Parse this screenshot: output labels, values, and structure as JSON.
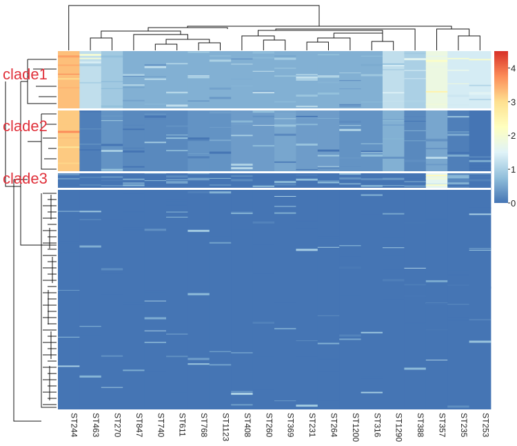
{
  "chart_data": {
    "type": "heatmap",
    "columns": [
      "ST244",
      "ST463",
      "ST270",
      "ST847",
      "ST740",
      "ST611",
      "ST768",
      "ST1123",
      "ST408",
      "ST260",
      "ST369",
      "ST231",
      "ST264",
      "ST1200",
      "ST316",
      "ST1290",
      "ST388",
      "ST357",
      "ST235",
      "ST253"
    ],
    "clade_labels": [
      "clade1",
      "clade2",
      "clade3"
    ],
    "colorbar": {
      "min": 0,
      "max": 4.5,
      "ticks": [
        0,
        1,
        2,
        3,
        4
      ],
      "colors": [
        "#4575b4",
        "#91bfdb",
        "#e0f3f8",
        "#ffffbf",
        "#fee090",
        "#fc8d59",
        "#d73027"
      ]
    },
    "blocks": [
      {
        "clade": "clade1",
        "values": [
          3.3,
          1.2,
          0.9,
          0.6,
          0.6,
          0.6,
          0.6,
          0.6,
          0.6,
          0.6,
          0.6,
          0.6,
          0.6,
          0.6,
          0.6,
          1.2,
          1.0,
          1.8,
          1.4,
          1.4
        ]
      },
      {
        "clade": "clade2",
        "values": [
          3.2,
          0.1,
          0.3,
          0.2,
          0.2,
          0.2,
          0.3,
          0.3,
          0.4,
          0.4,
          0.5,
          0.4,
          0.4,
          0.3,
          0.3,
          0.6,
          0.2,
          0.5,
          0.1,
          0.0
        ]
      },
      {
        "clade": "clade3",
        "values": [
          0.0,
          0.0,
          0.0,
          0.0,
          0.0,
          0.0,
          0.0,
          0.0,
          0.0,
          0.0,
          0.0,
          0.0,
          0.0,
          0.0,
          0.0,
          0.0,
          0.0,
          1.6,
          0.2,
          0.0
        ]
      },
      {
        "clade": "",
        "values": [
          0.0,
          0.0,
          0.0,
          0.0,
          0.0,
          0.0,
          0.0,
          0.0,
          0.0,
          0.0,
          0.0,
          0.0,
          0.0,
          0.0,
          0.0,
          0.0,
          0.0,
          0.0,
          0.0,
          0.0
        ]
      }
    ]
  }
}
